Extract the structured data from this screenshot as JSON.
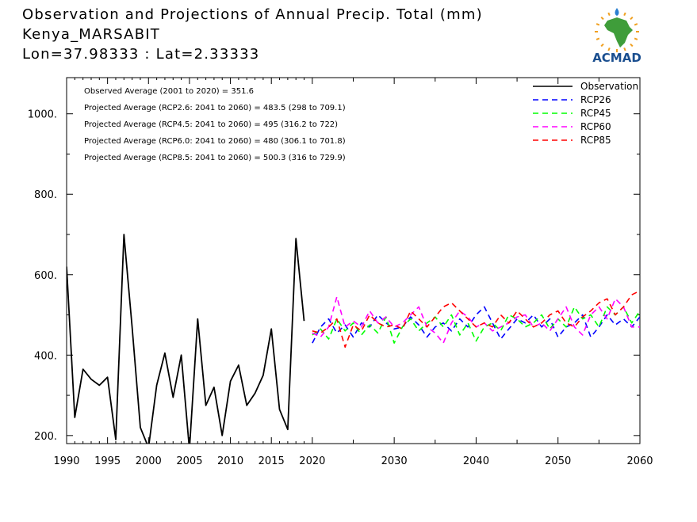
{
  "header": {
    "title": "Observation and Projections of Annual Precip. Total (mm)",
    "location": "Kenya_MARSABIT",
    "coords": "Lon=37.98333 : Lat=2.33333"
  },
  "logo": {
    "text": "ACMAD",
    "colors": {
      "africa": "#3f9d3a",
      "sun": "#f0a020",
      "drop": "#2a7fd0",
      "text": "#1a4e8f"
    }
  },
  "annotations": [
    "Observed Average (2001 to 2020) = 351.6",
    "Projected Average (RCP2.6: 2041 to 2060) = 483.5 (298 to 709.1)",
    "Projected Average (RCP4.5: 2041 to 2060) = 495 (316.2 to 722)",
    "Projected Average (RCP6.0: 2041 to 2060) = 480 (306.1 to 701.8)",
    "Projected Average (RCP8.5: 2041 to 2060) = 500.3 (316 to 729.9)"
  ],
  "chart_data": {
    "type": "line",
    "title": "Observation and Projections of Annual Precip. Total (mm)",
    "xlim": [
      1990,
      2060
    ],
    "ylim": [
      180,
      1090
    ],
    "x_ticks": [
      1990,
      1995,
      2000,
      2005,
      2010,
      2015,
      2020,
      2030,
      2040,
      2050,
      2060
    ],
    "y_ticks": [
      200,
      400,
      600,
      800,
      1000
    ],
    "y_tick_labels": [
      "200.",
      "400.",
      "600.",
      "800.",
      "1000."
    ],
    "legend_position": "top-right",
    "series": [
      {
        "name": "Observation",
        "color": "#000000",
        "dash": false,
        "x": [
          1990,
          1991,
          1992,
          1993,
          1994,
          1995,
          1996,
          1997,
          1998,
          1999,
          2000,
          2001,
          2002,
          2003,
          2004,
          2005,
          2006,
          2007,
          2008,
          2009,
          2010,
          2011,
          2012,
          2013,
          2014,
          2015,
          2016,
          2017,
          2018,
          2019,
          2020
        ],
        "values": [
          620,
          245,
          365,
          340,
          325,
          345,
          190,
          700,
          470,
          220,
          170,
          325,
          405,
          295,
          400,
          165,
          490,
          275,
          320,
          200,
          335,
          375,
          275,
          305,
          350,
          465,
          265,
          215,
          690,
          485,
          null
        ]
      },
      {
        "name": "RCP26",
        "color": "#0000ff",
        "dash": true,
        "x": [
          2020,
          2021,
          2022,
          2023,
          2024,
          2025,
          2026,
          2027,
          2028,
          2029,
          2030,
          2031,
          2032,
          2033,
          2034,
          2035,
          2036,
          2037,
          2038,
          2039,
          2040,
          2041,
          2042,
          2043,
          2044,
          2045,
          2046,
          2047,
          2048,
          2049,
          2050,
          2051,
          2052,
          2053,
          2054,
          2055,
          2056,
          2057,
          2058,
          2059,
          2060
        ],
        "values": [
          430,
          470,
          490,
          455,
          475,
          445,
          480,
          470,
          500,
          480,
          465,
          470,
          495,
          475,
          445,
          470,
          480,
          460,
          490,
          470,
          500,
          520,
          480,
          440,
          465,
          490,
          480,
          500,
          470,
          490,
          445,
          470,
          480,
          500,
          445,
          470,
          500,
          475,
          490,
          470,
          495
        ]
      },
      {
        "name": "RCP45",
        "color": "#00ff00",
        "dash": true,
        "x": [
          2020,
          2021,
          2022,
          2023,
          2024,
          2025,
          2026,
          2027,
          2028,
          2029,
          2030,
          2031,
          2032,
          2033,
          2034,
          2035,
          2036,
          2037,
          2038,
          2039,
          2040,
          2041,
          2042,
          2043,
          2044,
          2045,
          2046,
          2047,
          2048,
          2049,
          2050,
          2051,
          2052,
          2053,
          2054,
          2055,
          2056,
          2057,
          2058,
          2059,
          2060
        ],
        "values": [
          450,
          465,
          440,
          490,
          460,
          480,
          450,
          475,
          455,
          495,
          430,
          470,
          490,
          460,
          480,
          495,
          470,
          500,
          450,
          480,
          435,
          470,
          480,
          460,
          500,
          490,
          470,
          480,
          500,
          465,
          490,
          470,
          520,
          490,
          500,
          470,
          520,
          500,
          520,
          480,
          510
        ]
      },
      {
        "name": "RCP60",
        "color": "#ff00ff",
        "dash": true,
        "x": [
          2020,
          2021,
          2022,
          2023,
          2024,
          2025,
          2026,
          2027,
          2028,
          2029,
          2030,
          2031,
          2032,
          2033,
          2034,
          2035,
          2036,
          2037,
          2038,
          2039,
          2040,
          2041,
          2042,
          2043,
          2044,
          2045,
          2046,
          2047,
          2048,
          2049,
          2050,
          2051,
          2052,
          2053,
          2054,
          2055,
          2056,
          2057,
          2058,
          2059,
          2060
        ],
        "values": [
          455,
          445,
          470,
          545,
          470,
          485,
          470,
          510,
          480,
          495,
          470,
          480,
          500,
          520,
          470,
          455,
          430,
          480,
          510,
          495,
          470,
          480,
          460,
          470,
          480,
          495,
          500,
          470,
          480,
          460,
          490,
          520,
          470,
          450,
          500,
          520,
          490,
          540,
          520,
          470,
          470
        ]
      },
      {
        "name": "RCP85",
        "color": "#ff0000",
        "dash": true,
        "x": [
          2020,
          2021,
          2022,
          2023,
          2024,
          2025,
          2026,
          2027,
          2028,
          2029,
          2030,
          2031,
          2032,
          2033,
          2034,
          2035,
          2036,
          2037,
          2038,
          2039,
          2040,
          2041,
          2042,
          2043,
          2044,
          2045,
          2046,
          2047,
          2048,
          2049,
          2050,
          2051,
          2052,
          2053,
          2054,
          2055,
          2056,
          2057,
          2058,
          2059,
          2060
        ],
        "values": [
          460,
          455,
          470,
          490,
          420,
          475,
          460,
          500,
          480,
          470,
          475,
          465,
          510,
          490,
          470,
          495,
          520,
          530,
          510,
          490,
          470,
          480,
          470,
          500,
          480,
          510,
          490,
          470,
          480,
          500,
          510,
          480,
          470,
          495,
          510,
          530,
          540,
          500,
          520,
          550,
          560
        ]
      }
    ]
  }
}
